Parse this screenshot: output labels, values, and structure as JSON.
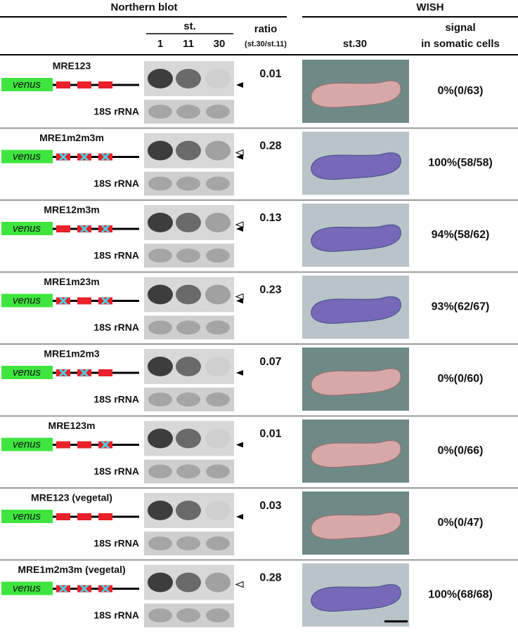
{
  "header": {
    "northern": "Northern blot",
    "wish": "WISH",
    "stage": "st.",
    "stages": [
      "1",
      "11",
      "30"
    ],
    "ratio": "ratio",
    "ratio_sub": "(st.30/st.11)",
    "wish_stage": "st.30",
    "signal": "signal",
    "signal_sub": "in somatic cells"
  },
  "rows": [
    {
      "name": "MRE123",
      "reporter": "venus",
      "loading_control": "18S rRNA",
      "ratio": "0.01",
      "signal": "0%(0/63)"
    },
    {
      "name": "MRE1m2m3m",
      "reporter": "venus",
      "loading_control": "18S rRNA",
      "ratio": "0.28",
      "signal": "100%(58/58)"
    },
    {
      "name": "MRE12m3m",
      "reporter": "venus",
      "loading_control": "18S rRNA",
      "ratio": "0.13",
      "signal": "94%(58/62)"
    },
    {
      "name": "MRE1m23m",
      "reporter": "venus",
      "loading_control": "18S rRNA",
      "ratio": "0.23",
      "signal": "93%(62/67)"
    },
    {
      "name": "MRE1m2m3",
      "reporter": "venus",
      "loading_control": "18S rRNA",
      "ratio": "0.07",
      "signal": "0%(0/60)"
    },
    {
      "name": "MRE123m",
      "reporter": "venus",
      "loading_control": "18S rRNA",
      "ratio": "0.01",
      "signal": "0%(0/66)"
    },
    {
      "name": "MRE123 (vegetal)",
      "reporter": "venus",
      "loading_control": "18S rRNA",
      "ratio": "0.03",
      "signal": "0%(0/47)"
    },
    {
      "name": "MRE1m2m3m (vegetal)",
      "reporter": "venus",
      "loading_control": "18S rRNA",
      "ratio": "0.28",
      "signal": "100%(68/68)"
    }
  ]
}
